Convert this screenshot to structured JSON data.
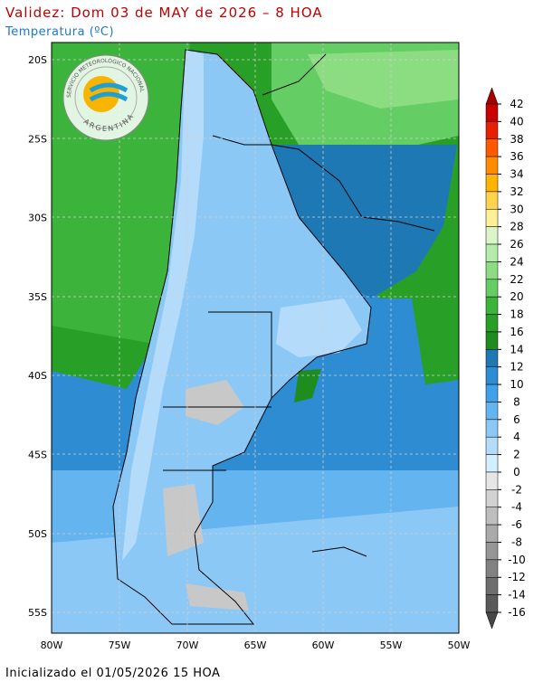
{
  "header": {
    "title": "Validez: Dom 03 de MAY de 2026 – 8 HOA",
    "subtitle": "Temperatura (ºC)"
  },
  "map": {
    "lat_labels": [
      "20S",
      "25S",
      "30S",
      "35S",
      "40S",
      "45S",
      "50S",
      "55S"
    ],
    "lon_labels": [
      "80W",
      "75W",
      "70W",
      "65W",
      "60W",
      "55W",
      "50W"
    ]
  },
  "logo": {
    "top": "SERVICIO METEOROLÓGICO NACIONAL",
    "bottom": "ARGENTINA"
  },
  "colorbar": {
    "levels": [
      42,
      40,
      38,
      36,
      34,
      32,
      30,
      28,
      26,
      24,
      22,
      20,
      18,
      16,
      14,
      12,
      10,
      8,
      6,
      4,
      2,
      0,
      -2,
      -4,
      -6,
      -8,
      -10,
      -12,
      -14,
      -16
    ],
    "colors": [
      "#a50000",
      "#c80000",
      "#e62000",
      "#ff5a00",
      "#ff8c00",
      "#ffb400",
      "#ffd250",
      "#fff096",
      "#dcf5c8",
      "#b4ebaa",
      "#8cdc82",
      "#64cd64",
      "#3cb43c",
      "#28a028",
      "#1e8c1e",
      "#1e78b4",
      "#2d8cd2",
      "#41a0e6",
      "#64b4f0",
      "#8cc8f5",
      "#b4dcfa",
      "#d2f0ff",
      "#e6e6e6",
      "#d2d2d2",
      "#bebebe",
      "#aaaaaa",
      "#969696",
      "#828282",
      "#6e6e6e",
      "#5a5a5a",
      "#464646"
    ]
  },
  "footer": "Inicializado el 01/05/2026 15 HOA"
}
